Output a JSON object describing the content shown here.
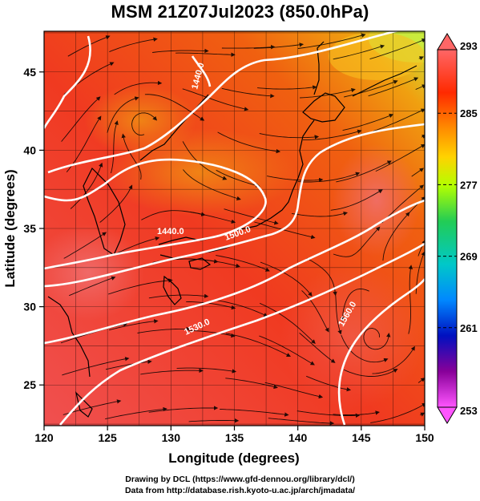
{
  "title": "MSM 21Z07Jul2023 (850.0hPa)",
  "map": {
    "lon_range": [
      120,
      150
    ],
    "lat_range": [
      22.4,
      47.6
    ],
    "x_label": "Longitude (degrees)",
    "y_label": "Latitude  (degrees)",
    "x_ticks": [
      "120",
      "125",
      "130",
      "135",
      "140",
      "145",
      "150"
    ],
    "y_ticks": [
      "25",
      "30",
      "35",
      "40",
      "45"
    ],
    "grid": true,
    "field": "temperature (K), shaded",
    "streamlines": true,
    "contour_labels": [
      "1440.0",
      "1440.0",
      "1500.0",
      "1530.0",
      "1560.0"
    ]
  },
  "colorbar": {
    "ticks": [
      "293",
      "285",
      "277",
      "269",
      "261",
      "253"
    ],
    "colors": [
      "#ff6666",
      "#ff2200",
      "#ff8800",
      "#ffcc00",
      "#aaff00",
      "#22cc66",
      "#00cccc",
      "#0088ff",
      "#0000aa",
      "#880088",
      "#ff55ff"
    ]
  },
  "credits": {
    "line1": "Drawing by DCL (https://www.gfd-dennou.org/library/dcl/)",
    "line2": "Data from http://database.rish.kyoto-u.ac.jp/arch/jmadata/"
  }
}
